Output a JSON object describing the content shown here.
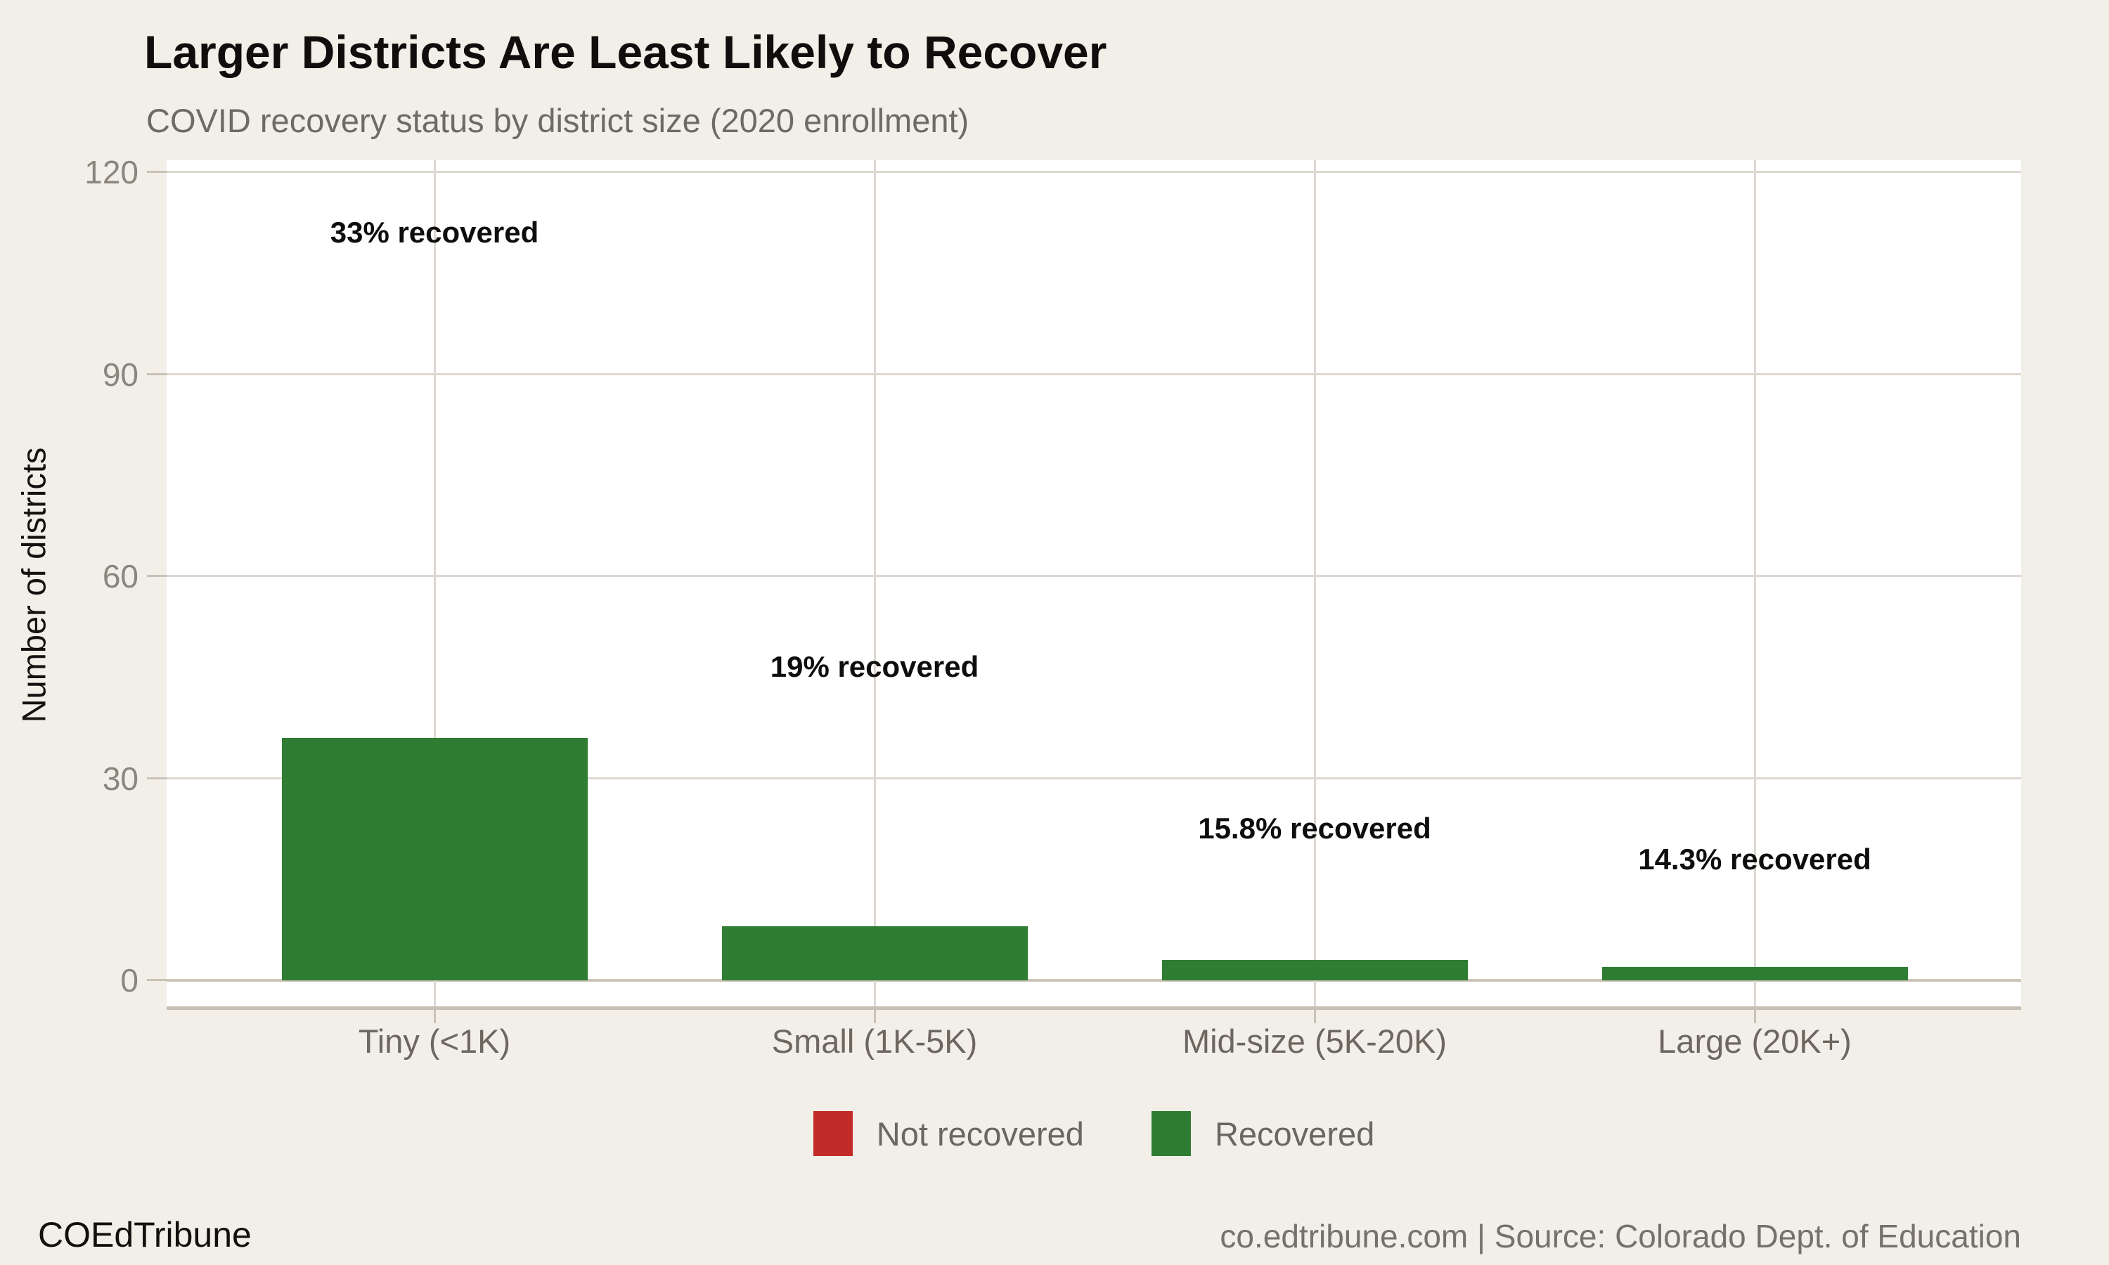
{
  "chart_data": {
    "type": "bar",
    "title": "Larger Districts Are Least Likely to Recover",
    "subtitle": "COVID recovery status by district size (2020 enrollment)",
    "categories": [
      "Tiny (<1K)",
      "Small (1K-5K)",
      "Mid-size (5K-20K)",
      "Large (20K+)"
    ],
    "series": [
      {
        "name": "Recovered",
        "color": "#2e7d32",
        "values": [
          36,
          8,
          3,
          2
        ]
      }
    ],
    "annotations": [
      {
        "text": "33% recovered",
        "category_index": 0,
        "y": 111
      },
      {
        "text": "19% recovered",
        "category_index": 1,
        "y": 46.5
      },
      {
        "text": "15.8% recovered",
        "category_index": 2,
        "y": 22.5
      },
      {
        "text": "14.3% recovered",
        "category_index": 3,
        "y": 18
      }
    ],
    "xlabel": "",
    "ylabel": "Number of districts",
    "ylim": [
      0,
      120
    ],
    "yticks": [
      0,
      30,
      60,
      90,
      120
    ],
    "grid": true,
    "legend_position": "bottom",
    "legend": [
      {
        "label": "Not recovered",
        "color": "#c22b28"
      },
      {
        "label": "Recovered",
        "color": "#2e7d32"
      }
    ]
  },
  "footer": {
    "brand": "COEdTribune",
    "source": "co.edtribune.com | Source: Colorado Dept. of Education"
  },
  "colors": {
    "background": "#f2efe9",
    "panel": "#ffffff",
    "grid": "#ddd8d0",
    "zero_line": "#cdc6bb",
    "axis_line": "#c6beb3",
    "tick": "#c9c1b5",
    "bar_green": "#2e7d32",
    "legend_red": "#c22b28",
    "title_text": "#0f0e0c",
    "subtitle_text": "#6e6a64",
    "y_tick_text": "#8a857d",
    "x_tick_text": "#6d6760"
  }
}
